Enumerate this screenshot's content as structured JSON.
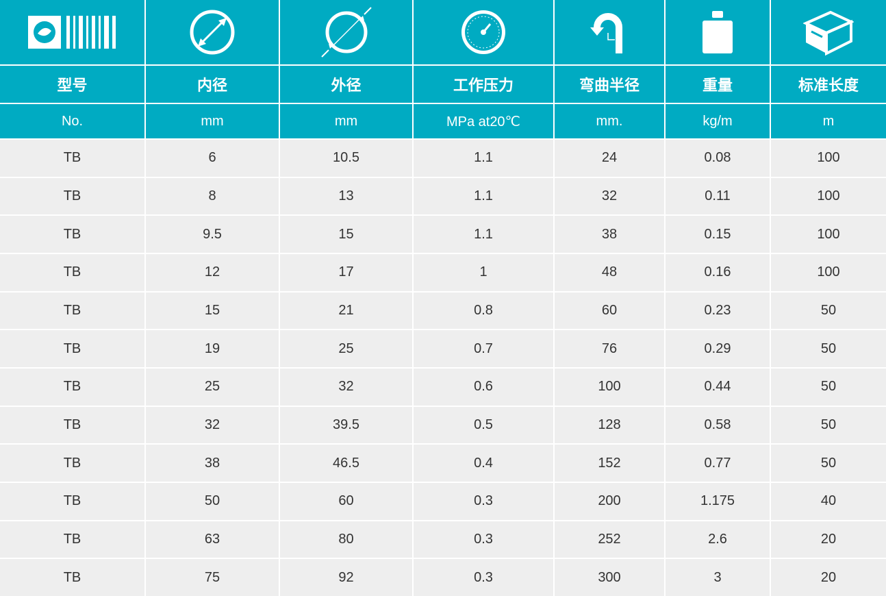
{
  "table": {
    "header": [
      "型号",
      "内径",
      "外径",
      "工作压力",
      "弯曲半径",
      "重量",
      "标准长度"
    ],
    "units": [
      "No.",
      "mm",
      "mm",
      "MPa at20℃",
      "mm.",
      "kg/m",
      "m"
    ],
    "rows": [
      [
        "TB",
        6,
        10.5,
        1.1,
        24,
        0.08,
        100
      ],
      [
        "TB",
        8,
        13,
        1.1,
        32,
        0.11,
        100
      ],
      [
        "TB",
        9.5,
        15,
        1.1,
        38,
        0.15,
        100
      ],
      [
        "TB",
        12,
        17,
        1,
        48,
        0.16,
        100
      ],
      [
        "TB",
        15,
        21,
        0.8,
        60,
        0.23,
        50
      ],
      [
        "TB",
        19,
        25,
        0.7,
        76,
        0.29,
        50
      ],
      [
        "TB",
        25,
        32,
        0.6,
        100,
        0.44,
        50
      ],
      [
        "TB",
        32,
        39.5,
        0.5,
        128,
        0.58,
        50
      ],
      [
        "TB",
        38,
        46.5,
        0.4,
        152,
        0.77,
        50
      ],
      [
        "TB",
        50,
        60,
        0.3,
        200,
        1.175,
        40
      ],
      [
        "TB",
        63,
        80,
        0.3,
        252,
        2.6,
        20
      ],
      [
        "TB",
        75,
        92,
        0.3,
        300,
        3,
        20
      ]
    ]
  }
}
